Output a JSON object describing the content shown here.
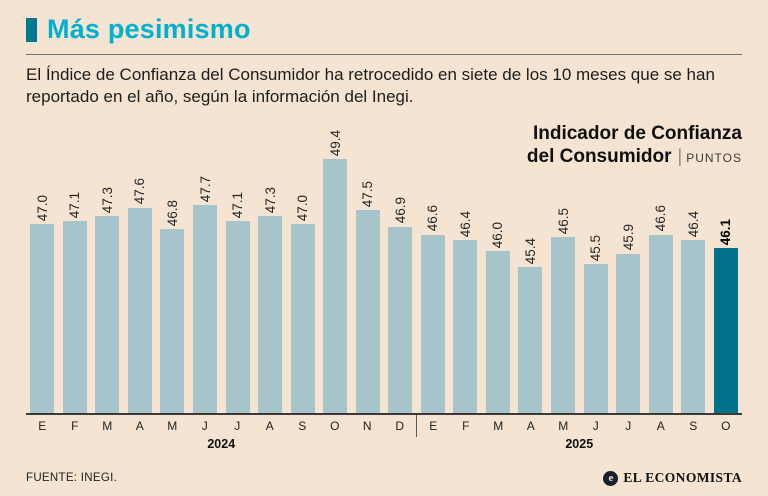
{
  "header": {
    "title": "Más pesimismo",
    "subtitle": "El Índice de Confianza del Consumidor ha retrocedido en siete de los 10 meses que se han reportado en el año, según la información del Inegi."
  },
  "chart_title": {
    "line1": "Indicador de Confianza",
    "line2": "del Consumidor",
    "separator": "|",
    "units": "PUNTOS"
  },
  "chart_data": {
    "type": "bar",
    "title": "Indicador de Confianza del Consumidor",
    "units": "PUNTOS",
    "categories": [
      "E",
      "F",
      "M",
      "A",
      "M",
      "J",
      "J",
      "A",
      "S",
      "O",
      "N",
      "D",
      "E",
      "F",
      "M",
      "A",
      "M",
      "J",
      "J",
      "A",
      "S",
      "O"
    ],
    "values": [
      47.0,
      47.1,
      47.3,
      47.6,
      46.8,
      47.7,
      47.1,
      47.3,
      47.0,
      49.4,
      47.5,
      46.9,
      46.6,
      46.4,
      46.0,
      45.4,
      46.5,
      45.5,
      45.9,
      46.6,
      46.4,
      46.1
    ],
    "years": [
      {
        "label": "2024",
        "months": 12
      },
      {
        "label": "2025",
        "months": 10
      }
    ],
    "ylim": [
      40,
      50
    ],
    "grid": false,
    "legend": "none",
    "highlight_last_bar": true,
    "colors": {
      "bar": "#a7c4cb",
      "highlight": "#00728c",
      "background": "#f4e4d1",
      "accent": "#00b1cf"
    }
  },
  "footer": {
    "source": "FUENTE: INEGI.",
    "brand": "EL ECONOMISTA",
    "brand_icon": "e"
  }
}
